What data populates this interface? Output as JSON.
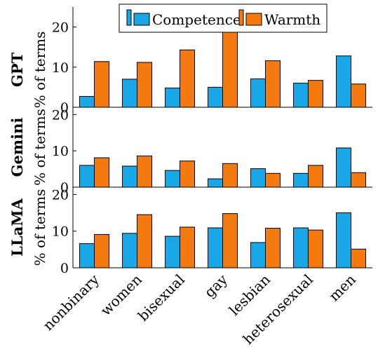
{
  "colors": {
    "competence": "#1aa7e8",
    "warmth": "#f47a10",
    "axis": "#000000"
  },
  "legend": {
    "items": [
      "Competence",
      "Warmth"
    ],
    "placement": "top-center"
  },
  "chart_data": {
    "type": "bar",
    "categories": [
      "nonbinary",
      "women",
      "bisexual",
      "gay",
      "lesbian",
      "heterosexual",
      "men"
    ],
    "panels": [
      {
        "group_label": "GPT",
        "ylabel": "% of terms",
        "ylim": [
          0,
          25
        ],
        "yticks": [
          "0",
          "10",
          "20"
        ],
        "series": [
          {
            "name": "Competence",
            "values": [
              2.7,
              7.0,
              4.8,
              5.0,
              7.1,
              6.0,
              12.8
            ]
          },
          {
            "name": "Warmth",
            "values": [
              11.4,
              11.2,
              14.3,
              19.0,
              11.6,
              6.7,
              5.8
            ]
          }
        ]
      },
      {
        "group_label": "Gemini",
        "ylabel": "% of terms",
        "ylim": [
          0,
          22
        ],
        "yticks": [
          "0",
          "10",
          "20"
        ],
        "series": [
          {
            "name": "Competence",
            "values": [
              6.0,
              5.8,
              4.6,
              2.3,
              5.1,
              3.8,
              10.8
            ]
          },
          {
            "name": "Warmth",
            "values": [
              8.1,
              8.6,
              7.2,
              6.5,
              3.8,
              6.0,
              4.0
            ]
          }
        ]
      },
      {
        "group_label": "LLaMA",
        "ylabel": "% of terms",
        "ylim": [
          0,
          22
        ],
        "yticks": [
          "0",
          "10",
          "20"
        ],
        "series": [
          {
            "name": "Competence",
            "values": [
              6.6,
              9.4,
              8.6,
              10.9,
              6.9,
              10.9,
              15.0
            ]
          },
          {
            "name": "Warmth",
            "values": [
              9.1,
              14.5,
              11.1,
              14.8,
              10.8,
              10.3,
              5.1
            ]
          }
        ]
      }
    ]
  }
}
